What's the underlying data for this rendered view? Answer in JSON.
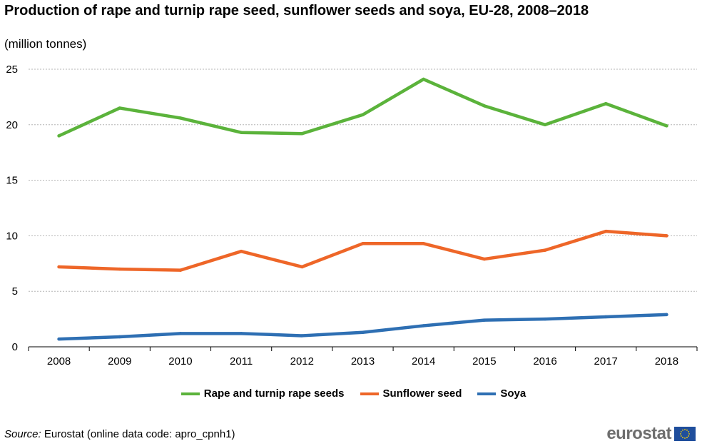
{
  "title": "Production of rape and turnip rape seed, sunflower seeds and soya, EU-28, 2008–2018",
  "subtitle": "(million  tonnes)",
  "source": {
    "label": "Source:",
    "text": " Eurostat (online data code: apro_cpnh1)"
  },
  "logo": {
    "text": "eurostat",
    "icon": "eu-flag-icon"
  },
  "chart_data": {
    "type": "line",
    "title": "Production of rape and turnip rape seed, sunflower seeds and soya, EU-28, 2008–2018",
    "subtitle": "(million  tonnes)",
    "xlabel": "",
    "ylabel": "",
    "categories": [
      "2008",
      "2009",
      "2010",
      "2011",
      "2012",
      "2013",
      "2014",
      "2015",
      "2016",
      "2017",
      "2018"
    ],
    "ylim": [
      0,
      25
    ],
    "yticks": [
      0,
      5,
      10,
      15,
      20,
      25
    ],
    "grid": "horizontal dashed",
    "legend": "bottom",
    "series": [
      {
        "name": "Rape and turnip rape seeds",
        "color": "#5BB33B",
        "values": [
          19.0,
          21.5,
          20.6,
          19.3,
          19.2,
          20.9,
          24.1,
          21.7,
          20.0,
          21.9,
          19.9
        ]
      },
      {
        "name": "Sunflower seed",
        "color": "#EE6628",
        "values": [
          7.2,
          7.0,
          6.9,
          8.6,
          7.2,
          9.3,
          9.3,
          7.9,
          8.7,
          10.4,
          10.0
        ]
      },
      {
        "name": "Soya",
        "color": "#2E6FB3",
        "values": [
          0.7,
          0.9,
          1.2,
          1.2,
          1.0,
          1.3,
          1.9,
          2.4,
          2.5,
          2.7,
          2.9
        ]
      }
    ]
  }
}
